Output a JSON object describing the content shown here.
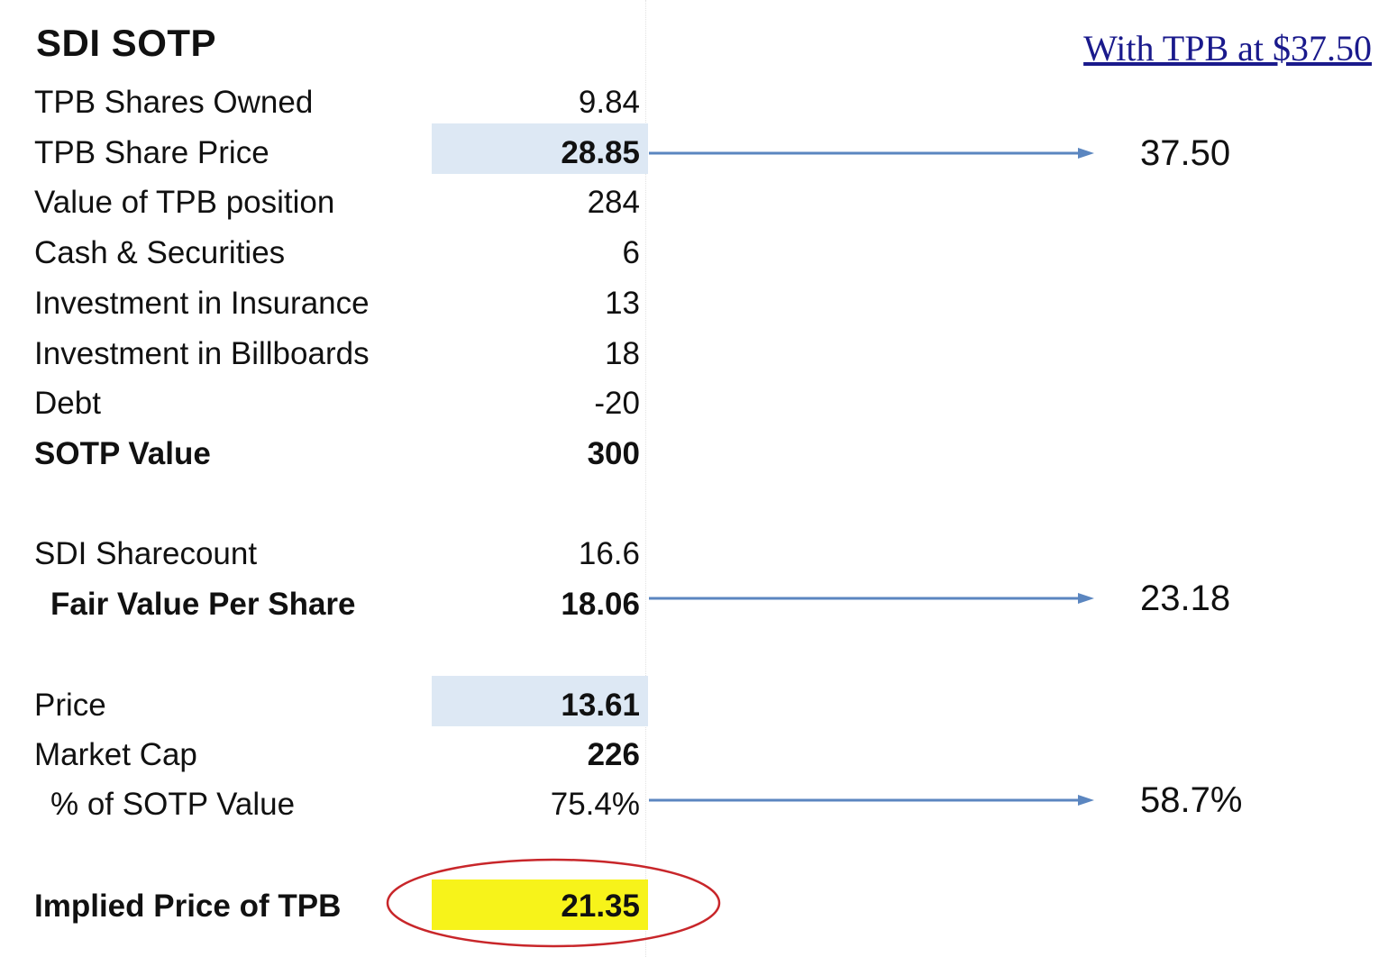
{
  "title": "SDI SOTP",
  "scenario_label": "With TPB at $37.50",
  "rows": {
    "tpb_shares_owned": {
      "label": "TPB Shares Owned",
      "value": "9.84"
    },
    "tpb_share_price": {
      "label": "TPB Share Price",
      "value": "28.85"
    },
    "value_tpb_position": {
      "label": "Value of TPB position",
      "value": "284"
    },
    "cash_securities": {
      "label": "Cash & Securities",
      "value": "6"
    },
    "investment_insurance": {
      "label": "Investment in Insurance",
      "value": "13"
    },
    "investment_billboards": {
      "label": "Investment in Billboards",
      "value": "18"
    },
    "debt": {
      "label": "Debt",
      "value": "-20"
    },
    "sotp_value": {
      "label": "SOTP Value",
      "value": "300"
    },
    "sdi_sharecount": {
      "label": "SDI Sharecount",
      "value": "16.6"
    },
    "fair_value_per_share": {
      "label": "Fair Value Per Share",
      "value": "18.06"
    },
    "price": {
      "label": "Price",
      "value": "13.61"
    },
    "market_cap": {
      "label": "Market Cap",
      "value": "226"
    },
    "pct_sotp_value": {
      "label": "% of SOTP Value",
      "value": "75.4%"
    },
    "implied_price_tpb": {
      "label": "Implied Price of TPB",
      "value": "21.35"
    }
  },
  "scenario_values": {
    "tpb_share_price": "37.50",
    "fair_value_per_share": "23.18",
    "pct_sotp_value": "58.7%"
  },
  "colors": {
    "input_highlight": "#dde8f4",
    "result_highlight": "#f7f31a",
    "arrow": "#5b86c0",
    "circle": "#c8262a",
    "scenario_link": "#1a1a8c"
  }
}
